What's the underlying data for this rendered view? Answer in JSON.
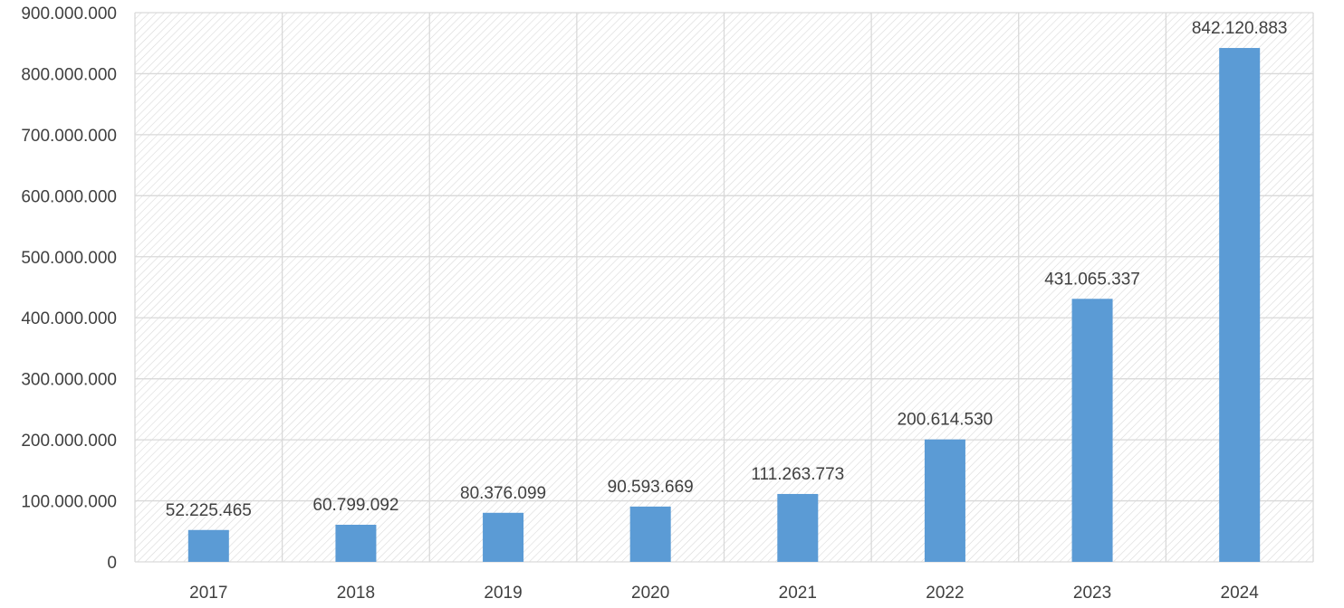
{
  "chart_data": {
    "type": "bar",
    "title": "",
    "xlabel": "",
    "ylabel": "",
    "categories": [
      "2017",
      "2018",
      "2019",
      "2020",
      "2021",
      "2022",
      "2023",
      "2024"
    ],
    "values": [
      52225465,
      60799092,
      80376099,
      90593669,
      111263773,
      200614530,
      431065337,
      842120883
    ],
    "data_labels": [
      "52.225.465",
      "60.799.092",
      "80.376.099",
      "90.593.669",
      "111.263.773",
      "200.614.530",
      "431.065.337",
      "842.120.883"
    ],
    "ylim": [
      0,
      900000000
    ],
    "yticks": [
      0,
      100000000,
      200000000,
      300000000,
      400000000,
      500000000,
      600000000,
      700000000,
      800000000,
      900000000
    ],
    "ytick_labels": [
      "0",
      "100.000.000",
      "200.000.000",
      "300.000.000",
      "400.000.000",
      "500.000.000",
      "600.000.000",
      "700.000.000",
      "800.000.000",
      "900.000.000"
    ],
    "grid": true,
    "legend": "none",
    "colors": {
      "bar": "#5b9bd5",
      "grid": "#d9d9d9",
      "hatch": "#d9d9d9",
      "text": "#404040"
    }
  }
}
